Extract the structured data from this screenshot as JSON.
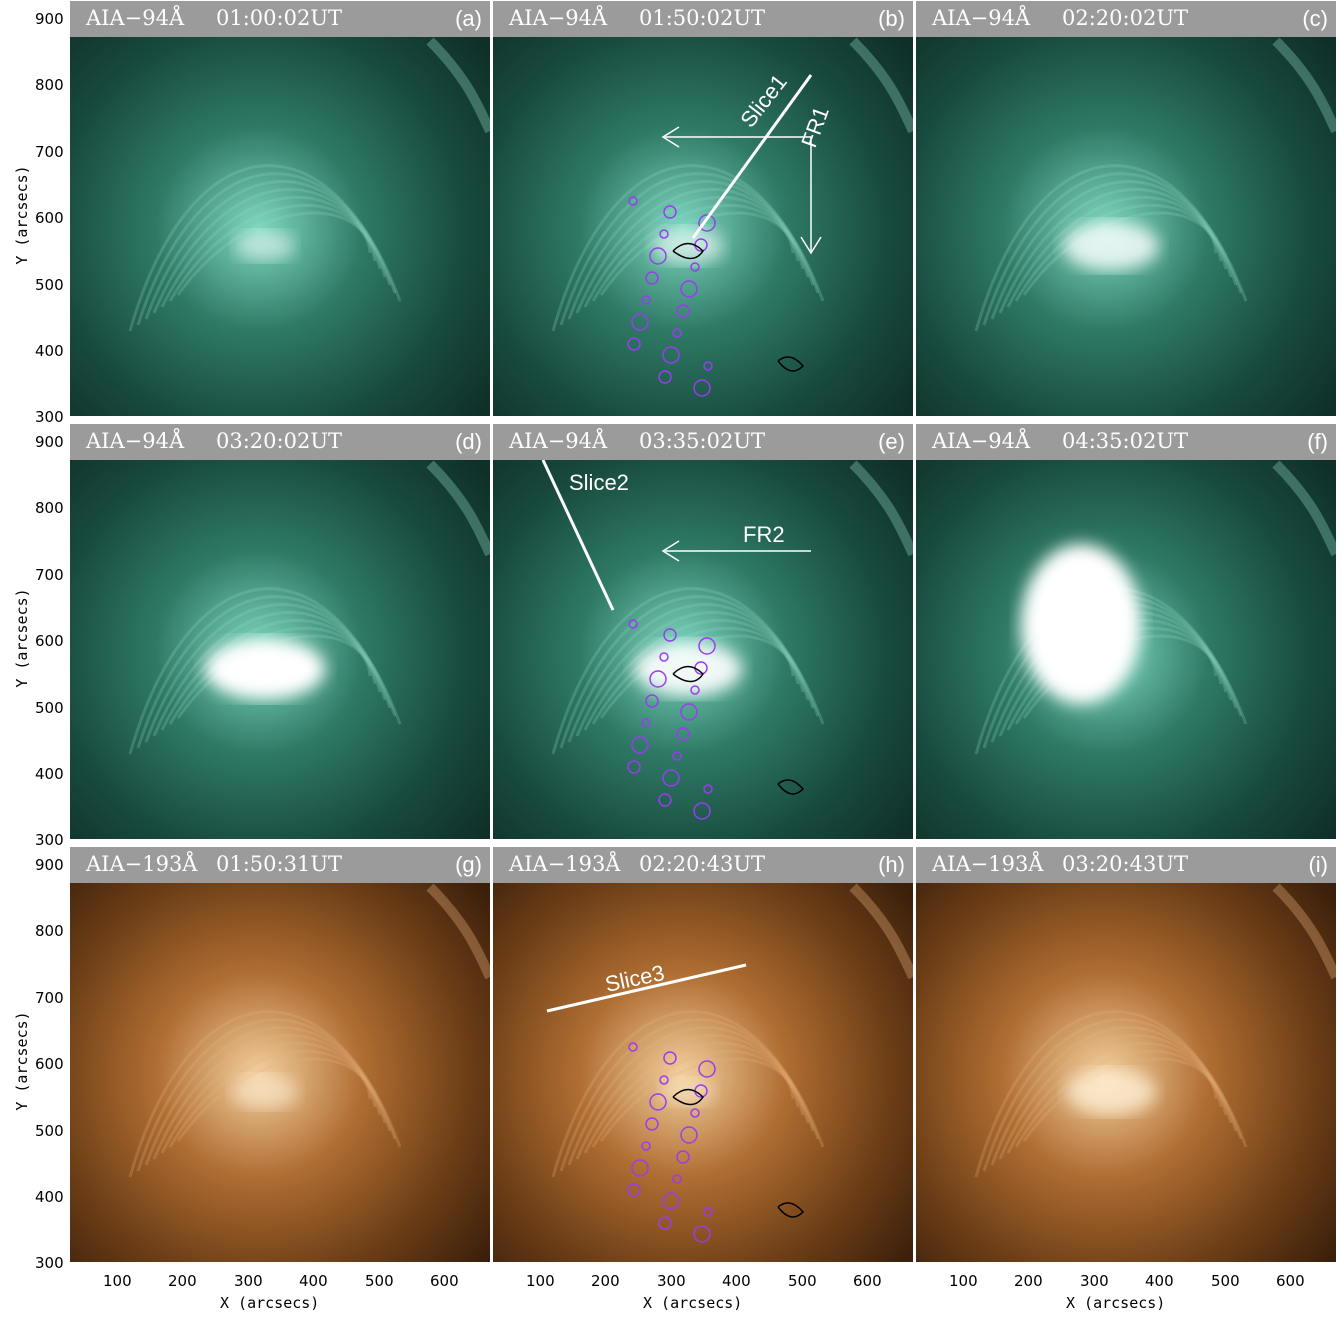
{
  "figure": {
    "panels": [
      {
        "id": "a",
        "instrument": "AIA−94Å",
        "time": "01:00:02UT",
        "label": "(a)",
        "colormap": "teal"
      },
      {
        "id": "b",
        "instrument": "AIA−94Å",
        "time": "01:50:02UT",
        "label": "(b)",
        "colormap": "teal",
        "annotations": [
          "Slice1",
          "FR1"
        ],
        "contours": true
      },
      {
        "id": "c",
        "instrument": "AIA−94Å",
        "time": "02:20:02UT",
        "label": "(c)",
        "colormap": "teal"
      },
      {
        "id": "d",
        "instrument": "AIA−94Å",
        "time": "03:20:02UT",
        "label": "(d)",
        "colormap": "teal"
      },
      {
        "id": "e",
        "instrument": "AIA−94Å",
        "time": "03:35:02UT",
        "label": "(e)",
        "colormap": "teal",
        "annotations": [
          "Slice2",
          "FR2"
        ],
        "contours": true
      },
      {
        "id": "f",
        "instrument": "AIA−94Å",
        "time": "04:35:02UT",
        "label": "(f)",
        "colormap": "teal"
      },
      {
        "id": "g",
        "instrument": "AIA−193Å",
        "time": "01:50:31UT",
        "label": "(g)",
        "colormap": "copper"
      },
      {
        "id": "h",
        "instrument": "AIA−193Å",
        "time": "02:20:43UT",
        "label": "(h)",
        "colormap": "copper",
        "annotations": [
          "Slice3"
        ],
        "contours": true
      },
      {
        "id": "i",
        "instrument": "AIA−193Å",
        "time": "03:20:43UT",
        "label": "(i)",
        "colormap": "copper"
      }
    ],
    "y_axis": {
      "label": "Y (arcsecs)",
      "ticks": [
        "900",
        "800",
        "700",
        "600",
        "500",
        "400",
        "300"
      ]
    },
    "x_axis": {
      "label": "X (arcsecs)",
      "ticks": [
        "100",
        "200",
        "300",
        "400",
        "500",
        "600"
      ]
    },
    "colors": {
      "teal": "#3f8a78",
      "copper": "#b8783a",
      "header": "#9b9b9b",
      "contour_magenta": "#9a3cf0"
    }
  }
}
